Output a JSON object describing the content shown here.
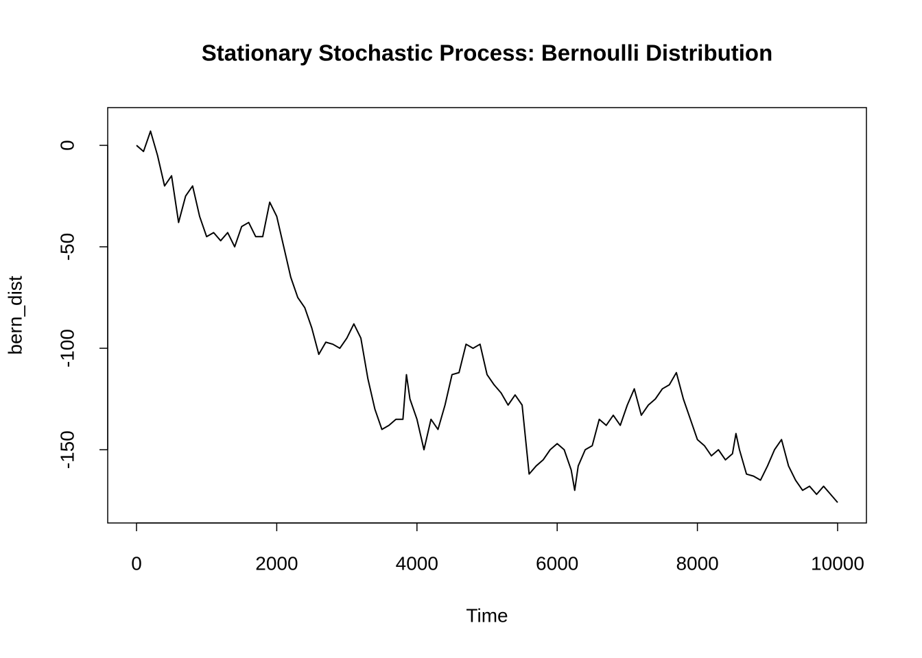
{
  "chart_data": {
    "type": "line",
    "title": "Stationary Stochastic Process: Bernoulli Distribution",
    "x_label": "Time",
    "y_label": "bern_dist",
    "color": "#000000",
    "x": [
      0,
      100,
      200,
      300,
      400,
      500,
      600,
      700,
      800,
      900,
      1000,
      1100,
      1200,
      1300,
      1400,
      1500,
      1600,
      1700,
      1800,
      1900,
      2000,
      2100,
      2200,
      2300,
      2400,
      2500,
      2600,
      2700,
      2800,
      2900,
      3000,
      3100,
      3200,
      3300,
      3400,
      3500,
      3600,
      3700,
      3800,
      3850,
      3900,
      4000,
      4100,
      4200,
      4300,
      4400,
      4500,
      4600,
      4700,
      4800,
      4900,
      5000,
      5100,
      5200,
      5300,
      5400,
      5500,
      5600,
      5700,
      5800,
      5900,
      6000,
      6100,
      6200,
      6250,
      6300,
      6400,
      6500,
      6600,
      6700,
      6800,
      6900,
      7000,
      7100,
      7200,
      7300,
      7400,
      7500,
      7600,
      7700,
      7800,
      7900,
      8000,
      8100,
      8200,
      8300,
      8400,
      8500,
      8550,
      8600,
      8700,
      8800,
      8900,
      9000,
      9100,
      9200,
      9300,
      9400,
      9500,
      9600,
      9700,
      9800,
      9900,
      10000
    ],
    "values": [
      0,
      -3,
      7,
      -5,
      -20,
      -15,
      -38,
      -25,
      -20,
      -35,
      -45,
      -43,
      -47,
      -43,
      -50,
      -40,
      -38,
      -45,
      -45,
      -28,
      -35,
      -50,
      -65,
      -75,
      -80,
      -90,
      -103,
      -97,
      -98,
      -100,
      -95,
      -88,
      -95,
      -115,
      -130,
      -140,
      -138,
      -135,
      -135,
      -113,
      -125,
      -135,
      -150,
      -135,
      -140,
      -128,
      -113,
      -112,
      -98,
      -100,
      -98,
      -113,
      -118,
      -122,
      -128,
      -123,
      -128,
      -162,
      -158,
      -155,
      -150,
      -147,
      -150,
      -160,
      -170,
      -158,
      -150,
      -148,
      -135,
      -138,
      -133,
      -138,
      -128,
      -120,
      -133,
      -128,
      -125,
      -120,
      -118,
      -112,
      -125,
      -135,
      -145,
      -148,
      -153,
      -150,
      -155,
      -152,
      -142,
      -150,
      -162,
      -163,
      -165,
      -158,
      -150,
      -145,
      -158,
      -165,
      -170,
      -168,
      -172,
      -168,
      -172,
      -176
    ],
    "xlim": [
      -411,
      10411
    ],
    "ylim": [
      -186.1,
      18.6
    ],
    "xticks": [
      0,
      2000,
      4000,
      6000,
      8000,
      10000
    ],
    "yticks": [
      0,
      -50,
      -100,
      -150
    ]
  }
}
